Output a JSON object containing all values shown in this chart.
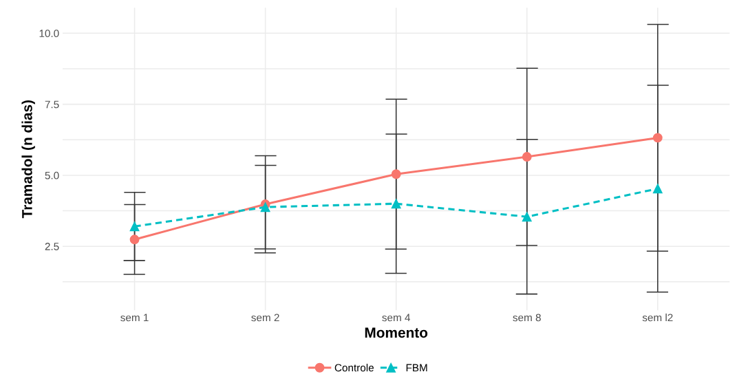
{
  "chart_data": {
    "type": "line",
    "xlabel": "Momento",
    "ylabel": "Tramadol (n dias)",
    "categories": [
      "sem 1",
      "sem 2",
      "sem 4",
      "sem 8",
      "sem l2"
    ],
    "series": [
      {
        "name": "Controle",
        "color": "#f8766d",
        "marker": "circle",
        "line_style": "solid",
        "values": [
          2.74,
          3.98,
          5.04,
          5.65,
          6.32
        ],
        "errors": [
          1.23,
          1.71,
          2.64,
          3.12,
          3.99
        ]
      },
      {
        "name": "FBM",
        "color": "#00bfc4",
        "marker": "triangle",
        "line_style": "dashed",
        "values": [
          3.2,
          3.88,
          4.0,
          3.54,
          4.53
        ],
        "errors": [
          1.2,
          1.47,
          2.45,
          2.72,
          3.64
        ]
      }
    ],
    "ylim": [
      0.25,
      10.9
    ],
    "yticks": [
      {
        "value": 1.25,
        "label": null
      },
      {
        "value": 2.5,
        "label": "2.5"
      },
      {
        "value": 3.75,
        "label": null
      },
      {
        "value": 5.0,
        "label": "5.0"
      },
      {
        "value": 6.25,
        "label": null
      },
      {
        "value": 7.5,
        "label": "7.5"
      },
      {
        "value": 8.75,
        "label": null
      },
      {
        "value": 10.0,
        "label": "10.0"
      }
    ],
    "grid": true,
    "legend": "bottom"
  }
}
